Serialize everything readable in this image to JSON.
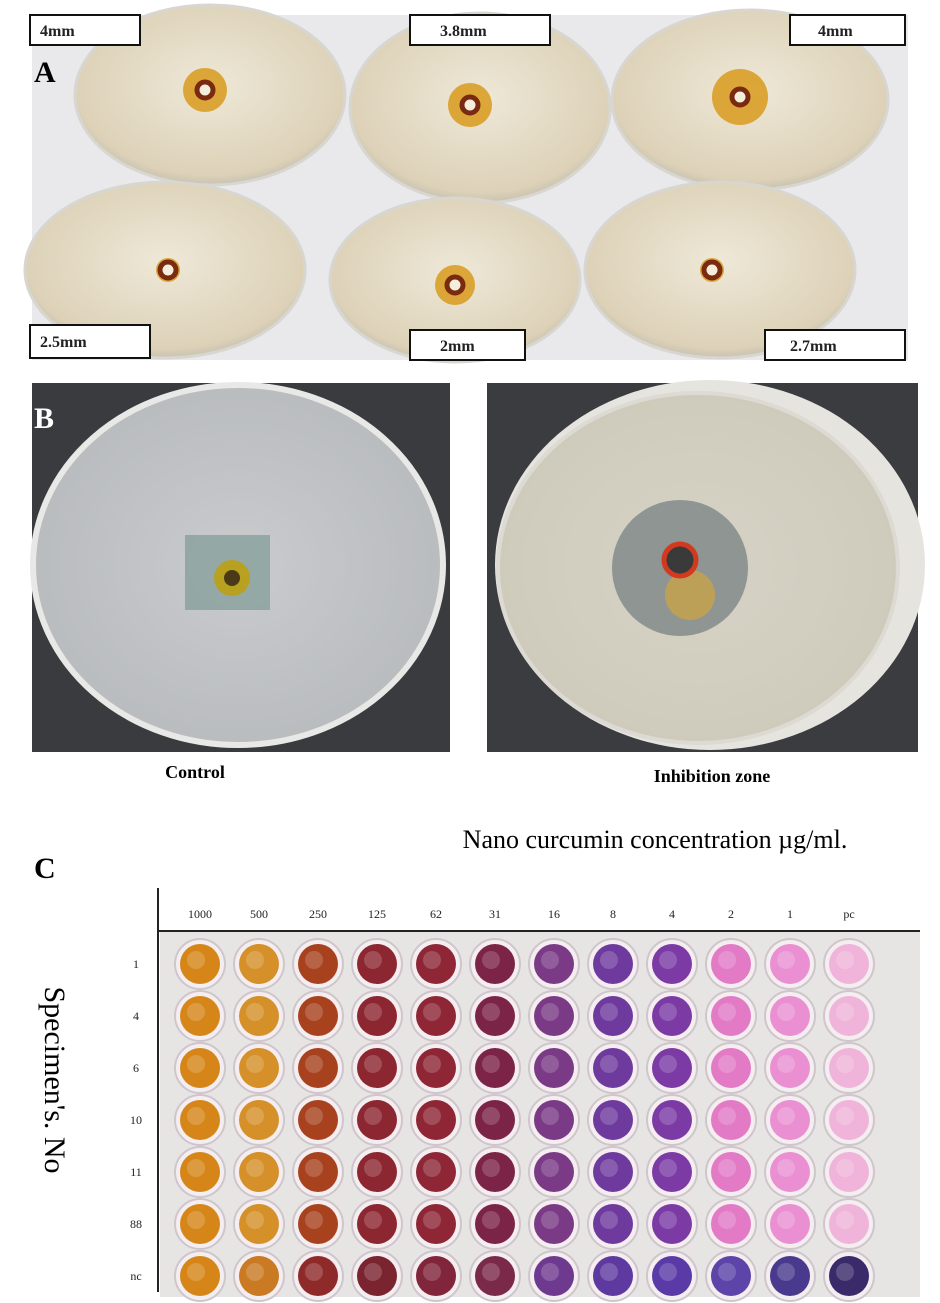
{
  "panel_a": {
    "label": "A",
    "zones": [
      "4mm",
      "3.8mm",
      "4mm",
      "2.5mm",
      "2mm",
      "2.7mm"
    ]
  },
  "panel_b": {
    "label": "B",
    "captions": [
      "Control",
      "Inhibition zone"
    ]
  },
  "panel_c": {
    "label": "C",
    "title": "Nano curcumin concentration µg/ml.",
    "columns": [
      "1000",
      "500",
      "250",
      "125",
      "62",
      "31",
      "16",
      "8",
      "4",
      "2",
      "1",
      "pc"
    ],
    "rows": [
      "1",
      "4",
      "6",
      "10",
      "11",
      "88",
      "nc"
    ],
    "y_title": "Specimen's. No"
  }
}
